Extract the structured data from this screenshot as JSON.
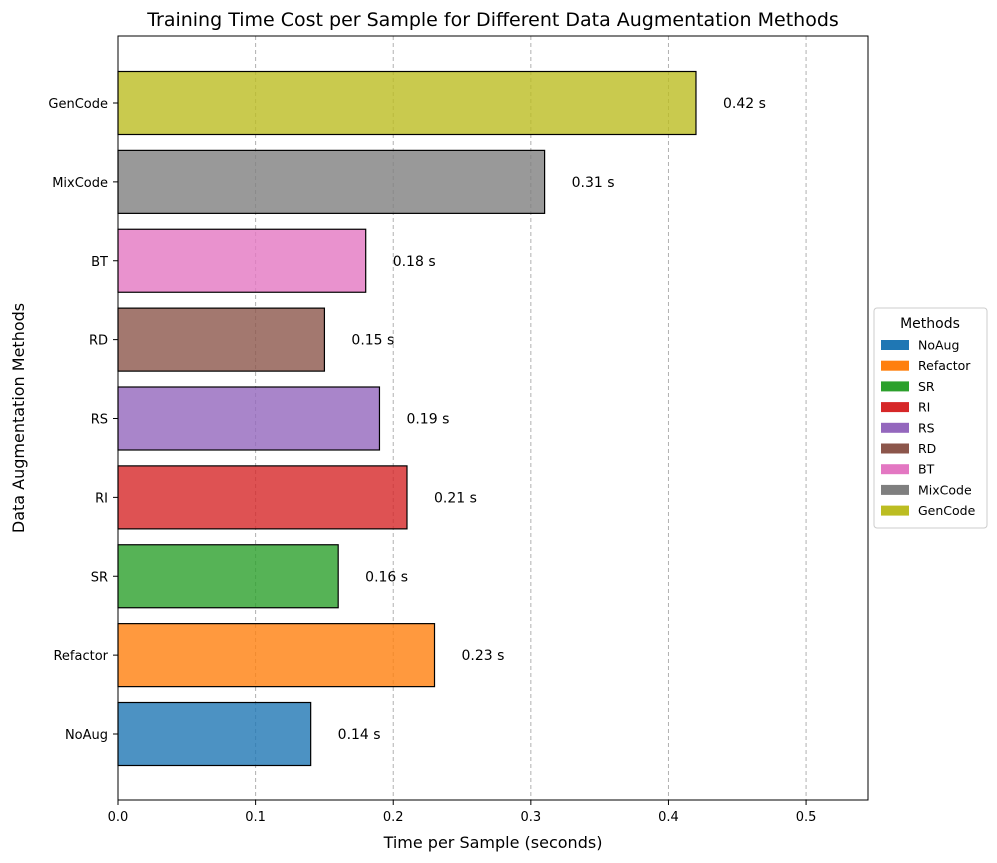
{
  "chart_data": {
    "type": "bar",
    "orientation": "horizontal",
    "title": "Training Time Cost per Sample for Different Data Augmentation Methods",
    "xlabel": "Time per Sample (seconds)",
    "ylabel": "Data Augmentation Methods",
    "xlim": [
      0,
      0.545
    ],
    "xticks": [
      0.0,
      0.1,
      0.2,
      0.3,
      0.4,
      0.5
    ],
    "xtick_labels": [
      "0.0",
      "0.1",
      "0.2",
      "0.3",
      "0.4",
      "0.5"
    ],
    "grid": "x-dashed",
    "categories": [
      "NoAug",
      "Refactor",
      "SR",
      "RI",
      "RS",
      "RD",
      "BT",
      "MixCode",
      "GenCode"
    ],
    "values": [
      0.14,
      0.23,
      0.16,
      0.21,
      0.19,
      0.15,
      0.18,
      0.31,
      0.42
    ],
    "value_labels": [
      "0.14 s",
      "0.23 s",
      "0.16 s",
      "0.21 s",
      "0.19 s",
      "0.15 s",
      "0.18 s",
      "0.31 s",
      "0.42 s"
    ],
    "colors": [
      "#1f77b4",
      "#ff7f0e",
      "#2ca02c",
      "#d62728",
      "#9467bd",
      "#8c564b",
      "#e377c2",
      "#7f7f7f",
      "#bcbd22"
    ],
    "legend": {
      "title": "Methods",
      "placement": "center-right, outside plot",
      "entries": [
        "NoAug",
        "Refactor",
        "SR",
        "RI",
        "RS",
        "RD",
        "BT",
        "MixCode",
        "GenCode"
      ]
    }
  }
}
